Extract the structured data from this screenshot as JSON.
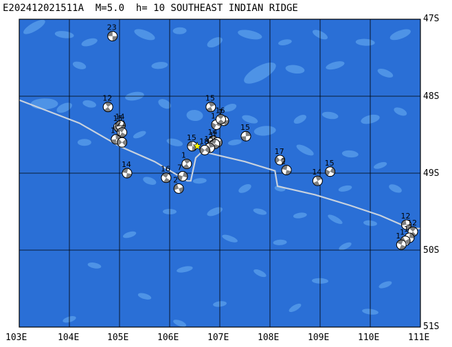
{
  "title": "E202412021511A  M=5.0  h= 10 SOUTHEAST INDIAN RIDGE",
  "lat_labels": [
    "47S",
    "48S",
    "49S",
    "50S",
    "51S"
  ],
  "lon_labels": [
    "103E",
    "104E",
    "105E",
    "106E",
    "107E",
    "108E",
    "109E",
    "110E",
    "111E"
  ],
  "map": {
    "lon_range": [
      103,
      111
    ],
    "lat_range": [
      -47,
      -51
    ],
    "ocean_color": "#2a6fd6",
    "bathymetry_color": "#4e93e6",
    "ridge_color": "#c8d2de",
    "epicenter_color": "#ffff00",
    "mechanism_color": "#808080"
  },
  "epicenter": {
    "lon": 106.55,
    "lat": -48.65
  },
  "ridge_path": [
    [
      103.0,
      -48.05
    ],
    [
      104.2,
      -48.35
    ],
    [
      105.0,
      -48.65
    ],
    [
      105.7,
      -48.85
    ],
    [
      106.35,
      -49.1
    ],
    [
      106.42,
      -49.1
    ],
    [
      106.52,
      -48.8
    ],
    [
      106.65,
      -48.72
    ],
    [
      107.5,
      -48.85
    ],
    [
      108.1,
      -48.97
    ],
    [
      108.15,
      -49.17
    ],
    [
      108.9,
      -49.28
    ],
    [
      109.6,
      -49.42
    ],
    [
      110.2,
      -49.55
    ],
    [
      110.8,
      -49.72
    ],
    [
      111.0,
      -49.72
    ]
  ],
  "mechanisms": [
    {
      "lon": 104.86,
      "lat": -47.22,
      "label": "23"
    },
    {
      "lon": 104.77,
      "lat": -48.14,
      "label": "12"
    },
    {
      "lon": 104.98,
      "lat": -48.4,
      "label": "15"
    },
    {
      "lon": 105.02,
      "lat": -48.38,
      "label": "14"
    },
    {
      "lon": 105.05,
      "lat": -48.47,
      "label": "21"
    },
    {
      "lon": 104.93,
      "lat": -48.56,
      "label": "1"
    },
    {
      "lon": 105.05,
      "lat": -48.6,
      "label": "1"
    },
    {
      "lon": 105.15,
      "lat": -49.0,
      "label": "14"
    },
    {
      "lon": 106.82,
      "lat": -48.14,
      "label": "15"
    },
    {
      "lon": 106.93,
      "lat": -48.37,
      "label": "1"
    },
    {
      "lon": 107.08,
      "lat": -48.32,
      "label": "7"
    },
    {
      "lon": 107.02,
      "lat": -48.3,
      "label": "16"
    },
    {
      "lon": 106.87,
      "lat": -48.58,
      "label": "14"
    },
    {
      "lon": 106.95,
      "lat": -48.6,
      "label": "1"
    },
    {
      "lon": 106.9,
      "lat": -48.62,
      "label": "1"
    },
    {
      "lon": 106.8,
      "lat": -48.67,
      "label": "15"
    },
    {
      "lon": 106.7,
      "lat": -48.7,
      "label": "18"
    },
    {
      "lon": 106.45,
      "lat": -48.65,
      "label": "15"
    },
    {
      "lon": 106.34,
      "lat": -48.88,
      "label": "1"
    },
    {
      "lon": 106.26,
      "lat": -49.04,
      "label": "7"
    },
    {
      "lon": 106.18,
      "lat": -49.2,
      "label": "2"
    },
    {
      "lon": 105.93,
      "lat": -49.06,
      "label": "16"
    },
    {
      "lon": 107.52,
      "lat": -48.52,
      "label": "15"
    },
    {
      "lon": 108.2,
      "lat": -48.83,
      "label": "17"
    },
    {
      "lon": 108.33,
      "lat": -48.96,
      "label": "2"
    },
    {
      "lon": 108.95,
      "lat": -49.1,
      "label": "14"
    },
    {
      "lon": 109.2,
      "lat": -48.98,
      "label": "15"
    },
    {
      "lon": 110.72,
      "lat": -49.67,
      "label": "12"
    },
    {
      "lon": 110.85,
      "lat": -49.76,
      "label": "12"
    },
    {
      "lon": 110.78,
      "lat": -49.84,
      "label": "1"
    },
    {
      "lon": 110.7,
      "lat": -49.88,
      "label": "1"
    },
    {
      "lon": 110.62,
      "lat": -49.93,
      "label": "1"
    }
  ]
}
